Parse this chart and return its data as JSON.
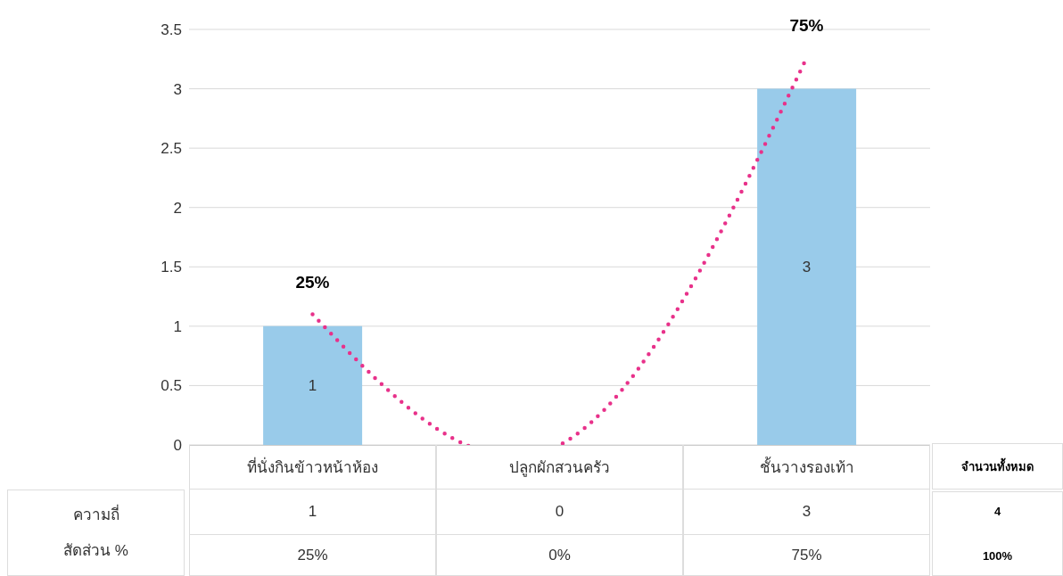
{
  "chart_data": {
    "type": "bar",
    "categories": [
      "ที่นั่งกินข้าวหน้าห้อง",
      "ปลูกผักสวนครัว",
      "ชั้นวางรองเท้า"
    ],
    "series": [
      {
        "color": "#99cbea",
        "values": [
          1,
          0,
          3
        ],
        "value_labels": [
          "1",
          "0",
          "3"
        ]
      },
      {
        "type": "line",
        "color": "#e8318a",
        "line_style": "dotted",
        "values": [
          1.1,
          0,
          3.26
        ]
      }
    ],
    "annotations": [
      "25%",
      "0%",
      "75%",
      "จำนวนทั้งหมด",
      "4",
      "100%",
      "ความถี่",
      "สัดส่วน %"
    ],
    "ylim": [
      0,
      3.5
    ],
    "yticks": [
      0,
      0.5,
      1,
      1.5,
      2,
      2.5,
      3,
      3.5
    ],
    "grid": "y",
    "legend": false
  }
}
